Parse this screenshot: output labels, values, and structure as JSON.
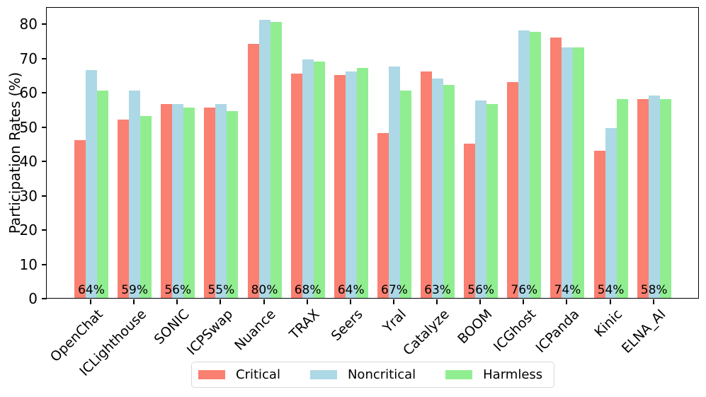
{
  "chart_data": {
    "type": "bar",
    "title": "",
    "xlabel": "",
    "ylabel": "Participation Rates (%)",
    "categories": [
      "OpenChat",
      "ICLighthouse",
      "SONIC",
      "ICPSwap",
      "Nuance",
      "TRAX",
      "Seers",
      "Yral",
      "Catalyze",
      "BOOM",
      "ICGhost",
      "ICPanda",
      "Kinic",
      "ELNA_AI"
    ],
    "series": [
      {
        "name": "Critical",
        "color": "#FA8072",
        "values": [
          46,
          52,
          56.5,
          55.5,
          74,
          65.5,
          65,
          48,
          66,
          45,
          63,
          76,
          43,
          58
        ]
      },
      {
        "name": "Noncritical",
        "color": "#ADD8E6",
        "values": [
          66.5,
          60.5,
          56.5,
          56.5,
          81,
          69.5,
          66,
          67.5,
          64,
          57.5,
          78,
          73,
          49.5,
          59
        ]
      },
      {
        "name": "Harmless",
        "color": "#90EE90",
        "values": [
          60.5,
          53,
          55.5,
          54.5,
          80.5,
          69,
          67,
          60.5,
          62,
          56.5,
          77.5,
          73,
          58,
          58
        ]
      }
    ],
    "group_labels": [
      "64%",
      "59%",
      "56%",
      "55%",
      "80%",
      "68%",
      "64%",
      "67%",
      "63%",
      "56%",
      "76%",
      "74%",
      "54%",
      "58%"
    ],
    "yticks": [
      0,
      10,
      20,
      30,
      40,
      50,
      60,
      70,
      80
    ],
    "ylim": [
      0,
      85
    ],
    "grid": false,
    "legend": {
      "position": "bottom",
      "entries": [
        "Critical",
        "Noncritical",
        "Harmless"
      ]
    },
    "bar_label_color": "#000000",
    "axis_color": "#000000"
  }
}
